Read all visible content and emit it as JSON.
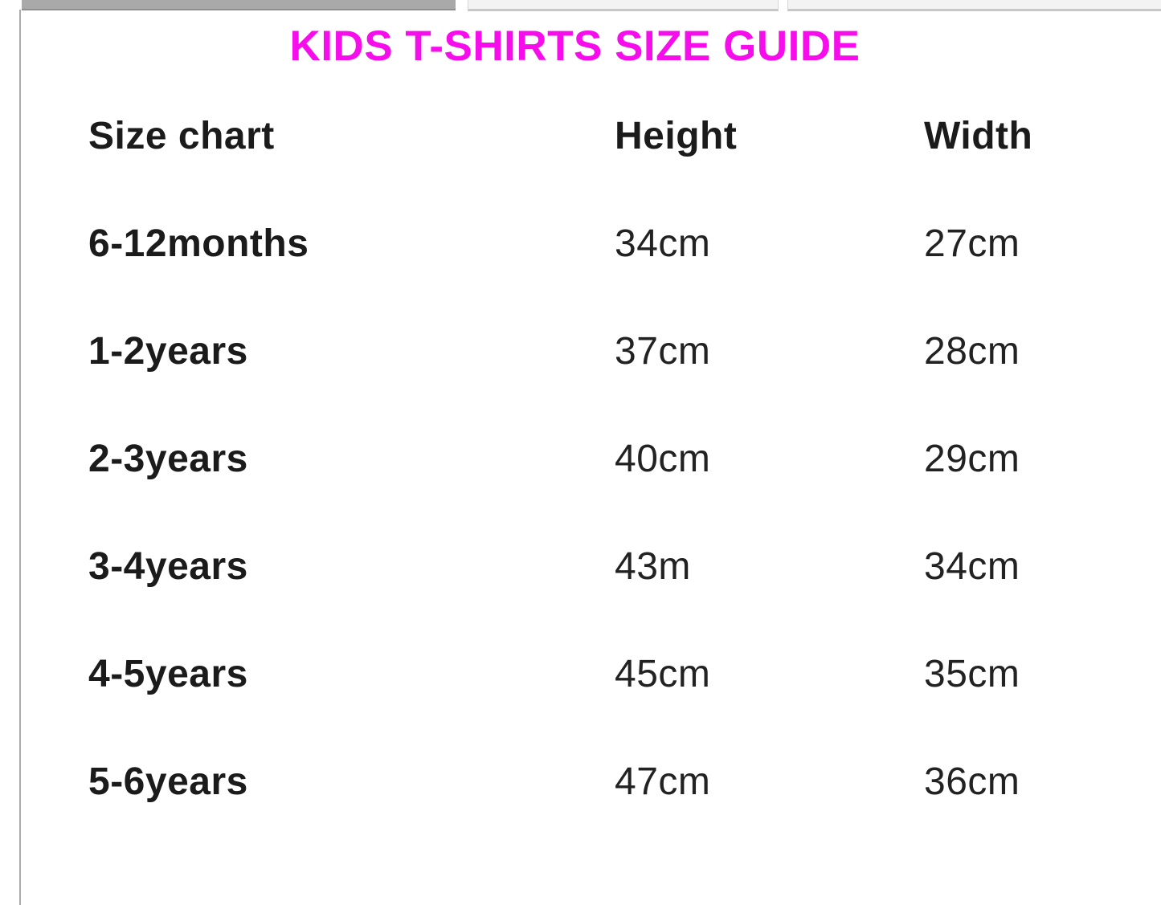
{
  "page": {
    "title": "KIDS T-SHIRTS SIZE GUIDE",
    "title_color": "#f70cec"
  },
  "decor": {
    "top_dark_bar_color": "#a9a9a9",
    "top_light_bar_color": "#f3f3f3",
    "left_rule_color": "#ababab"
  },
  "table": {
    "headers": {
      "size": "Size chart",
      "height": "Height",
      "width": "Width"
    },
    "rows": [
      {
        "size": "6-12months",
        "height": "34cm",
        "width": "27cm"
      },
      {
        "size": "1-2years",
        "height": "37cm",
        "width": "28cm"
      },
      {
        "size": "2-3years",
        "height": "40cm",
        "width": "29cm"
      },
      {
        "size": "3-4years",
        "height": "43m",
        "width": "34cm"
      },
      {
        "size": "4-5years",
        "height": "45cm",
        "width": "35cm"
      },
      {
        "size": "5-6years",
        "height": "47cm",
        "width": "36cm"
      }
    ]
  },
  "chart_data": {
    "type": "table",
    "title": "KIDS T-SHIRTS SIZE GUIDE",
    "columns": [
      "Size chart",
      "Height",
      "Width"
    ],
    "rows": [
      [
        "6-12months",
        "34cm",
        "27cm"
      ],
      [
        "1-2years",
        "37cm",
        "28cm"
      ],
      [
        "2-3years",
        "40cm",
        "29cm"
      ],
      [
        "3-4years",
        "43m",
        "34cm"
      ],
      [
        "4-5years",
        "45cm",
        "35cm"
      ],
      [
        "5-6years",
        "47cm",
        "36cm"
      ]
    ]
  }
}
